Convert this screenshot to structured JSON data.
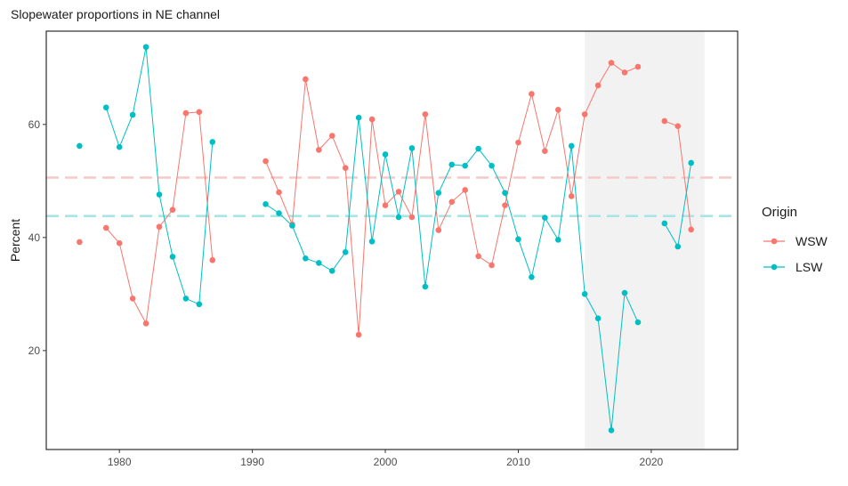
{
  "chart_data": {
    "type": "line",
    "title": "Slopewater proportions in NE channel",
    "xlabel": "",
    "ylabel": "Percent",
    "xlim": [
      1974.5,
      2026.5
    ],
    "ylim": [
      2.5,
      76.5
    ],
    "x_ticks": [
      1980,
      1990,
      2000,
      2010,
      2020
    ],
    "y_ticks": [
      20,
      40,
      60
    ],
    "grid": false,
    "legend": {
      "title": "Origin",
      "position": "right"
    },
    "shaded_region": {
      "x_start": 2015,
      "x_end": 2024,
      "color": "#f2f2f2"
    },
    "reference_lines": [
      {
        "series": "WSW",
        "y": 50.6,
        "style": "dashed"
      },
      {
        "series": "LSW",
        "y": 43.8,
        "style": "dashed"
      }
    ],
    "series": [
      {
        "name": "WSW",
        "color": "#F8766D",
        "ref_color": "#f7c9c6",
        "x": [
          1977,
          1979,
          1980,
          1981,
          1982,
          1983,
          1984,
          1985,
          1986,
          1987,
          1991,
          1992,
          1993,
          1994,
          1995,
          1996,
          1997,
          1998,
          1999,
          2000,
          2001,
          2002,
          2003,
          2004,
          2005,
          2006,
          2007,
          2008,
          2009,
          2010,
          2011,
          2012,
          2013,
          2014,
          2015,
          2016,
          2017,
          2018,
          2019,
          2021,
          2022,
          2023
        ],
        "values": [
          39.2,
          41.7,
          39.0,
          29.2,
          24.8,
          41.9,
          44.9,
          62.0,
          62.2,
          36.0,
          53.5,
          48.0,
          42.3,
          68.0,
          55.5,
          58.0,
          52.3,
          22.8,
          60.9,
          45.7,
          48.1,
          43.6,
          61.8,
          41.3,
          46.3,
          48.4,
          36.7,
          35.1,
          45.7,
          56.8,
          65.4,
          55.3,
          62.6,
          47.3,
          61.8,
          66.9,
          70.9,
          69.2,
          70.2,
          60.6,
          59.7,
          41.4
        ]
      },
      {
        "name": "LSW",
        "color": "#00BFC4",
        "ref_color": "#a8e5e6",
        "x": [
          1977,
          1979,
          1980,
          1981,
          1982,
          1983,
          1984,
          1985,
          1986,
          1987,
          1991,
          1992,
          1993,
          1994,
          1995,
          1996,
          1997,
          1998,
          1999,
          2000,
          2001,
          2002,
          2003,
          2004,
          2005,
          2006,
          2007,
          2008,
          2009,
          2010,
          2011,
          2012,
          2013,
          2014,
          2015,
          2016,
          2017,
          2018,
          2019,
          2021,
          2022,
          2023
        ],
        "values": [
          56.2,
          63.0,
          56.0,
          61.7,
          73.7,
          47.6,
          36.6,
          29.2,
          28.2,
          56.9,
          45.9,
          44.3,
          42.1,
          36.3,
          35.5,
          34.1,
          37.4,
          61.2,
          39.3,
          54.7,
          43.6,
          55.8,
          31.3,
          47.9,
          52.9,
          52.7,
          55.7,
          52.7,
          47.9,
          39.7,
          33.0,
          43.5,
          39.6,
          56.2,
          30.0,
          25.7,
          5.9,
          30.2,
          25.0,
          42.5,
          38.4,
          53.2
        ]
      }
    ]
  }
}
